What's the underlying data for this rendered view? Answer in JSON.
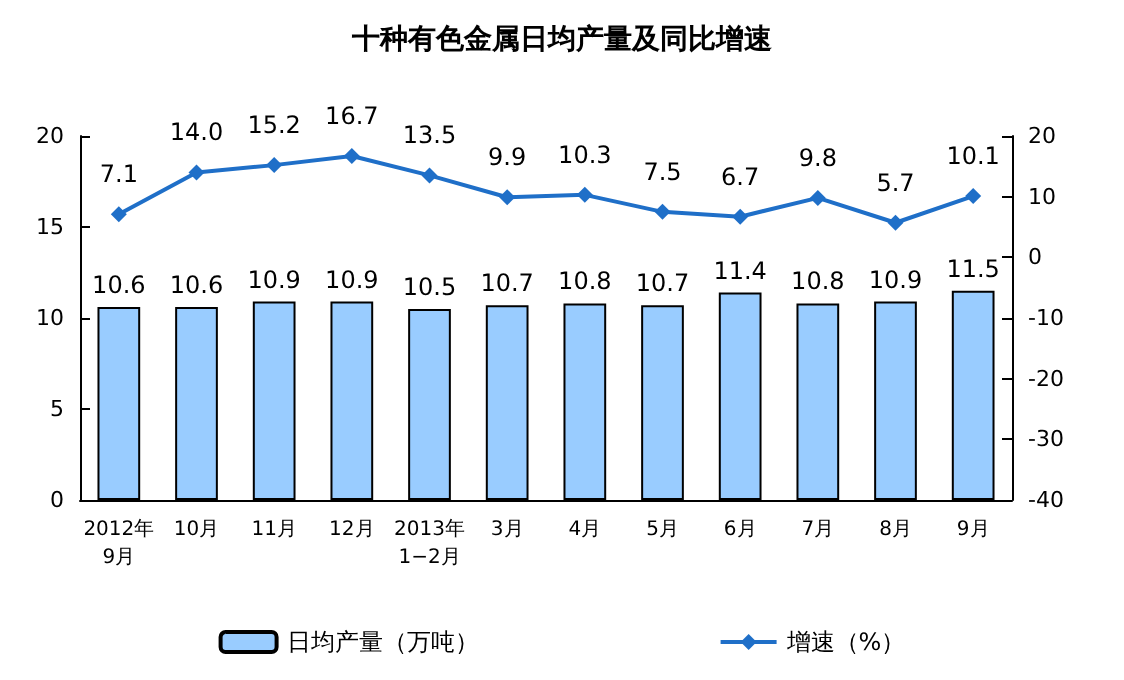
{
  "chart_data": {
    "type": "bar",
    "title": "十种有色金属日均产量及同比增速",
    "categories": [
      "2012年\n9月",
      "10月",
      "11月",
      "12月",
      "2013年\n1−2月",
      "3月",
      "4月",
      "5月",
      "6月",
      "7月",
      "8月",
      "9月"
    ],
    "series": [
      {
        "name": "日均产量（万吨）",
        "color": "#99ccff",
        "values": [
          10.6,
          10.6,
          10.9,
          10.9,
          10.5,
          10.7,
          10.8,
          10.7,
          11.4,
          10.8,
          10.9,
          11.5
        ]
      },
      {
        "name": "增速（%）",
        "type": "line",
        "axis": "y2",
        "color": "#1f6fc8",
        "values": [
          7.1,
          14.0,
          15.2,
          16.7,
          13.5,
          9.9,
          10.3,
          7.5,
          6.7,
          9.8,
          5.7,
          10.1
        ],
        "value_labels": [
          "7.1",
          "14.0",
          "15.2",
          "16.7",
          "13.5",
          "9.9",
          "10.3",
          "7.5",
          "6.7",
          "9.8",
          "5.7",
          "10.1"
        ]
      }
    ],
    "ylim": [
      0,
      20
    ],
    "yticks": [
      0,
      5,
      10,
      15,
      20
    ],
    "y2lim": [
      -40,
      20
    ],
    "y2ticks": [
      -40,
      -30,
      -20,
      -10,
      0,
      10,
      20
    ],
    "data_labels": true,
    "legend": "bottom",
    "grid": false,
    "marker": "diamond",
    "line_style": "solid"
  }
}
